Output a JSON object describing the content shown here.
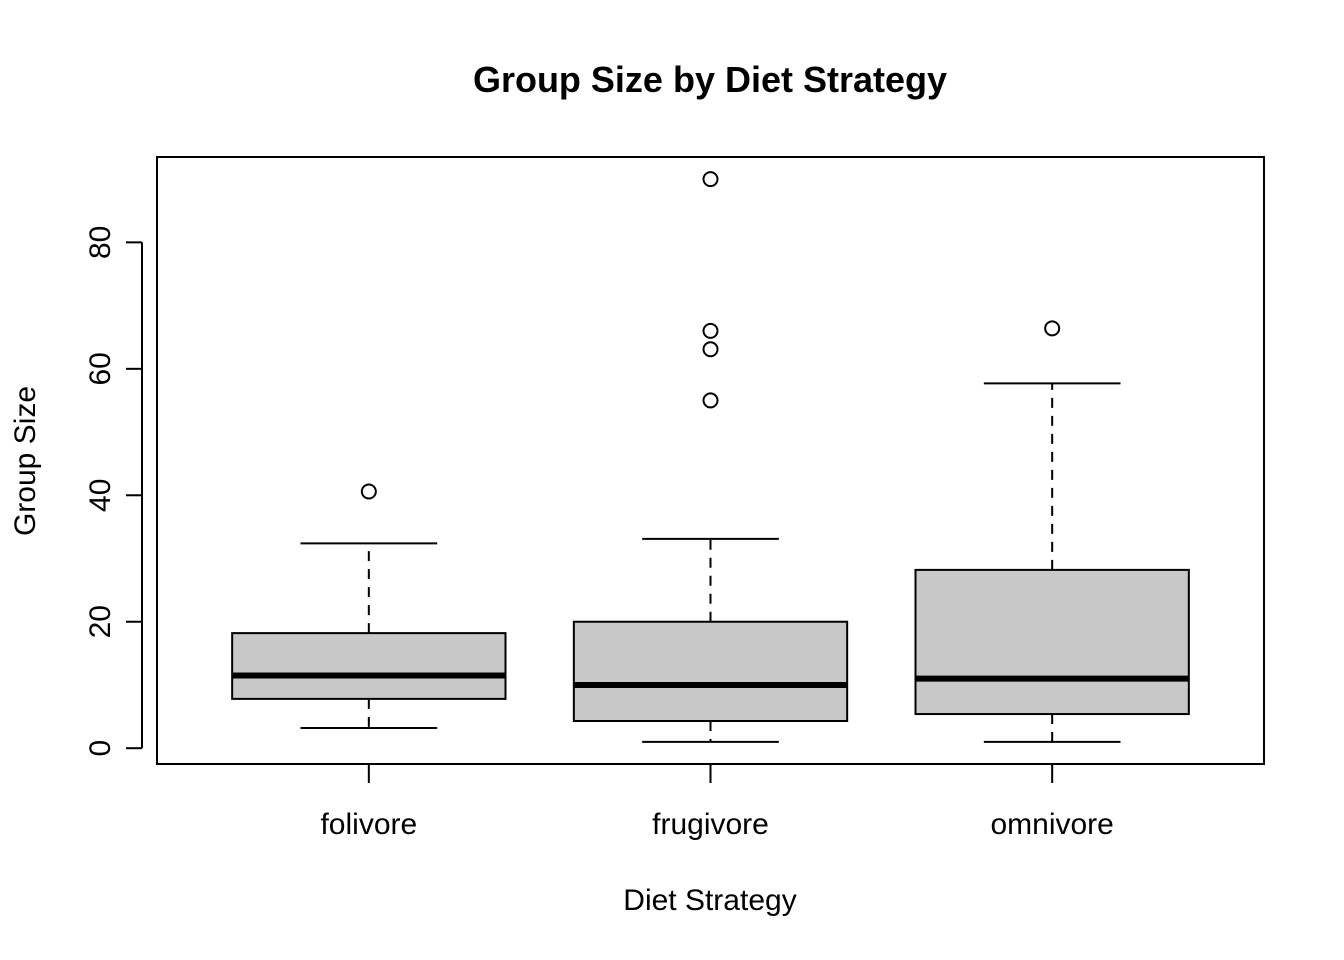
{
  "chart_data": {
    "type": "boxplot",
    "title": "Group Size by Diet Strategy",
    "xlabel": "Diet Strategy",
    "ylabel": "Group Size",
    "categories": [
      "folivore",
      "frugivore",
      "omnivore"
    ],
    "ylim": [
      -2.5,
      93.5
    ],
    "yticks": [
      0,
      20,
      40,
      60,
      80
    ],
    "box_fill": "#c8c8c8",
    "boxes": [
      {
        "category": "folivore",
        "whisker_low": 3.2,
        "q1": 7.8,
        "median": 11.5,
        "q3": 18.2,
        "whisker_high": 32.4,
        "outliers": [
          40.6
        ]
      },
      {
        "category": "frugivore",
        "whisker_low": 1.0,
        "q1": 4.3,
        "median": 10.0,
        "q3": 20.0,
        "whisker_high": 33.1,
        "outliers": [
          55.0,
          63.1,
          66.0,
          90.0
        ]
      },
      {
        "category": "omnivore",
        "whisker_low": 1.0,
        "q1": 5.4,
        "median": 11.0,
        "q3": 28.2,
        "whisker_high": 57.7,
        "outliers": [
          66.4
        ]
      }
    ],
    "grid": false,
    "legend": "none"
  }
}
